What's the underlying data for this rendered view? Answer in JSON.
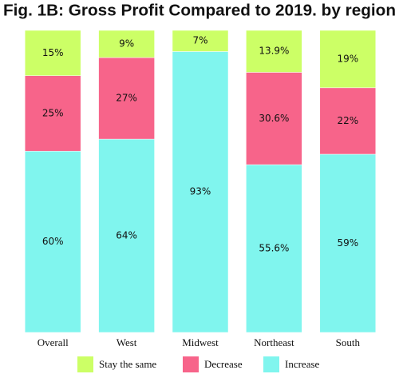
{
  "chart_data": {
    "type": "stacked_bar",
    "title": "Fig. 1B: Gross Profit Compared to 2019. by region",
    "categories": [
      "Overall",
      "West",
      "Midwest",
      "Northeast",
      "South"
    ],
    "series": [
      {
        "name": "Stay the same",
        "color": "#ccff66",
        "values": [
          15,
          9,
          7,
          13.9,
          19
        ],
        "value_labels": [
          "15%",
          "9%",
          "7%",
          "13.9%",
          "19%"
        ]
      },
      {
        "name": "Decrease",
        "color": "#f7648a",
        "values": [
          25,
          27,
          0,
          30.6,
          22
        ],
        "value_labels": [
          "25%",
          "27%",
          null,
          "30.6%",
          "22%"
        ]
      },
      {
        "name": "Increase",
        "color": "#80f5ee",
        "values": [
          60,
          64,
          93,
          55.6,
          59
        ],
        "value_labels": [
          "60%",
          "64%",
          "93%",
          "55.6%",
          "59%"
        ]
      }
    ]
  }
}
